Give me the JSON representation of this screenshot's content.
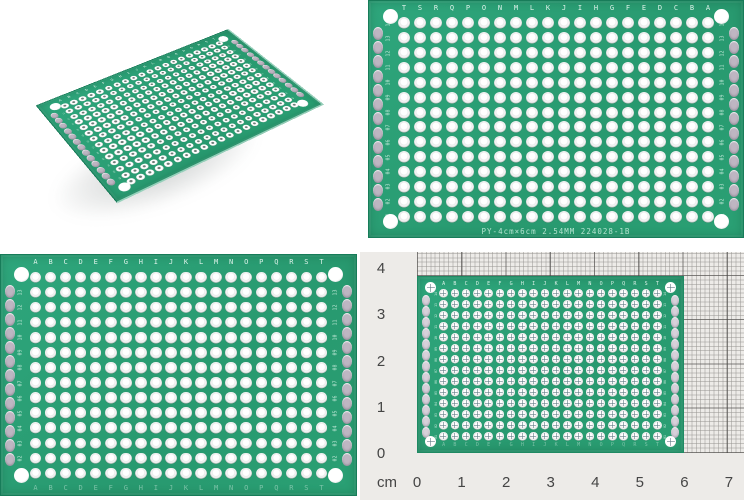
{
  "colors": {
    "pcb_green": "#2aa077",
    "pcb_green_dark": "#177c59",
    "pad_silver": "#f4f4f4",
    "edge_pad_gray": "#beb6c2",
    "edge_pad_light": "#d7d1da",
    "silkscreen_white": "#ebfaf3",
    "paper": "#edebe8",
    "grid_minor": "#969491",
    "grid_major": "#464442",
    "ruler_text": "#454545",
    "background": "#ffffff"
  },
  "panels": {
    "top_left": {
      "board": {
        "cols": 20,
        "rows": 14,
        "column_letters_top": [
          "A",
          "B",
          "C",
          "D",
          "E",
          "F",
          "G",
          "H",
          "I",
          "J",
          "K",
          "L",
          "M",
          "N",
          "O",
          "P",
          "Q",
          "R",
          "S",
          "T"
        ],
        "row_numbers": [
          "14",
          "13",
          "12",
          "11",
          "10",
          "09",
          "08",
          "07",
          "06",
          "05",
          "04",
          "03",
          "02",
          "01"
        ]
      }
    },
    "top_right": {
      "board": {
        "cols": 20,
        "rows": 14,
        "column_letters_top": [
          "T",
          "S",
          "R",
          "Q",
          "P",
          "O",
          "N",
          "M",
          "L",
          "K",
          "J",
          "I",
          "H",
          "G",
          "F",
          "E",
          "D",
          "C",
          "B",
          "A"
        ],
        "row_numbers": [
          "14",
          "13",
          "12",
          "11",
          "10",
          "09",
          "08",
          "07",
          "06",
          "05",
          "04",
          "03",
          "02",
          "01"
        ],
        "bottom_text": "PY-4cm×6cm 2.54MM  224028-1B"
      }
    },
    "bottom_left": {
      "board": {
        "cols": 20,
        "rows": 14,
        "column_letters_top": [
          "A",
          "B",
          "C",
          "D",
          "E",
          "F",
          "G",
          "H",
          "I",
          "J",
          "K",
          "L",
          "M",
          "N",
          "O",
          "P",
          "Q",
          "R",
          "S",
          "T"
        ],
        "column_letters_bottom": [
          "A",
          "B",
          "C",
          "D",
          "E",
          "F",
          "G",
          "H",
          "I",
          "J",
          "K",
          "L",
          "M",
          "N",
          "O",
          "P",
          "Q",
          "R",
          "S",
          "T"
        ],
        "row_numbers": [
          "14",
          "13",
          "12",
          "11",
          "10",
          "09",
          "08",
          "07",
          "06",
          "05",
          "04",
          "03",
          "02",
          "01"
        ]
      }
    },
    "bottom_right": {
      "board": {
        "cols": 20,
        "rows": 14,
        "column_letters_top": [
          "A",
          "B",
          "C",
          "D",
          "E",
          "F",
          "G",
          "H",
          "I",
          "J",
          "K",
          "L",
          "M",
          "N",
          "O",
          "P",
          "Q",
          "R",
          "S",
          "T"
        ],
        "column_letters_bottom": [
          "A",
          "B",
          "C",
          "D",
          "E",
          "F",
          "G",
          "H",
          "I",
          "J",
          "K",
          "L",
          "M",
          "N",
          "O",
          "P",
          "Q",
          "R",
          "S",
          "T"
        ],
        "row_numbers": [
          "14",
          "13",
          "12",
          "11",
          "10",
          "09",
          "08",
          "07",
          "06",
          "05",
          "04",
          "03",
          "02",
          "01"
        ]
      },
      "ruler": {
        "unit": "cm",
        "x_labels": [
          "0",
          "1",
          "2",
          "3",
          "4",
          "5",
          "6",
          "7"
        ],
        "y_labels": [
          "4",
          "3",
          "2",
          "1",
          "0"
        ]
      }
    }
  }
}
